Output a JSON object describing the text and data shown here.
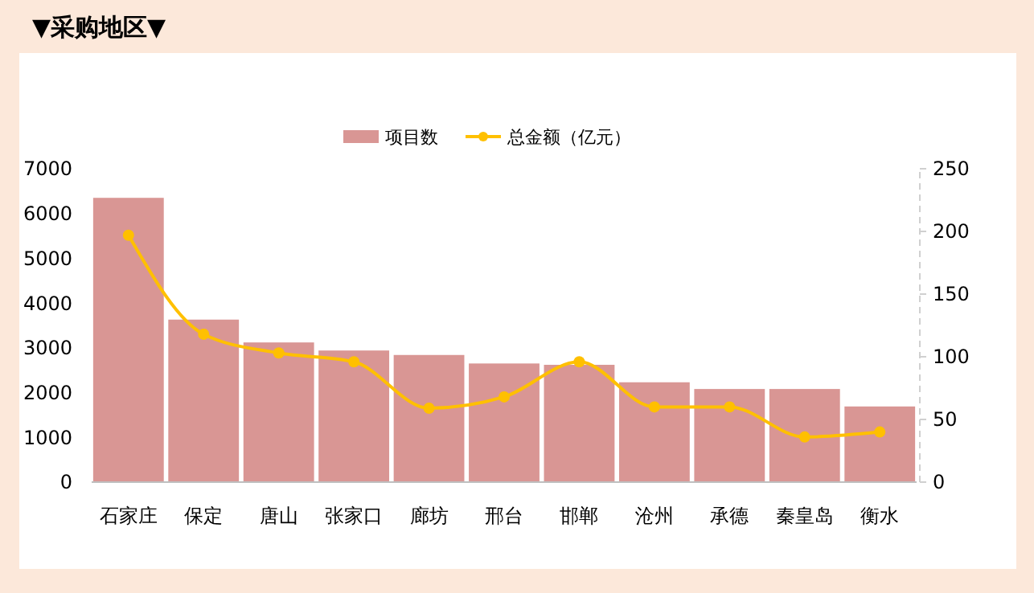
{
  "chart_data": {
    "type": "bar",
    "title": "▼采购地区▼",
    "categories": [
      "石家庄",
      "保定",
      "唐山",
      "张家口",
      "廊坊",
      "邢台",
      "邯郸",
      "沧州",
      "承德",
      "秦皇岛",
      "衡水"
    ],
    "series": [
      {
        "name": "项目数",
        "color": "#d99694",
        "values": [
          6350,
          3630,
          3120,
          2940,
          2840,
          2650,
          2620,
          2230,
          2080,
          2080,
          1690
        ]
      },
      {
        "name": "总金额（亿元）",
        "type": "line",
        "axis": "y2",
        "color": "#ffc000",
        "marker": "circle",
        "values": [
          197,
          118,
          103,
          96,
          59,
          68,
          96,
          60,
          60,
          36,
          40
        ]
      }
    ],
    "ylim": [
      0,
      7000
    ],
    "yticks": [
      0,
      1000,
      2000,
      3000,
      4000,
      5000,
      6000,
      7000
    ],
    "y2lim": [
      0,
      250
    ],
    "y2ticks": [
      0,
      50,
      100,
      150,
      200,
      250
    ],
    "legend": "top",
    "grid": false
  }
}
